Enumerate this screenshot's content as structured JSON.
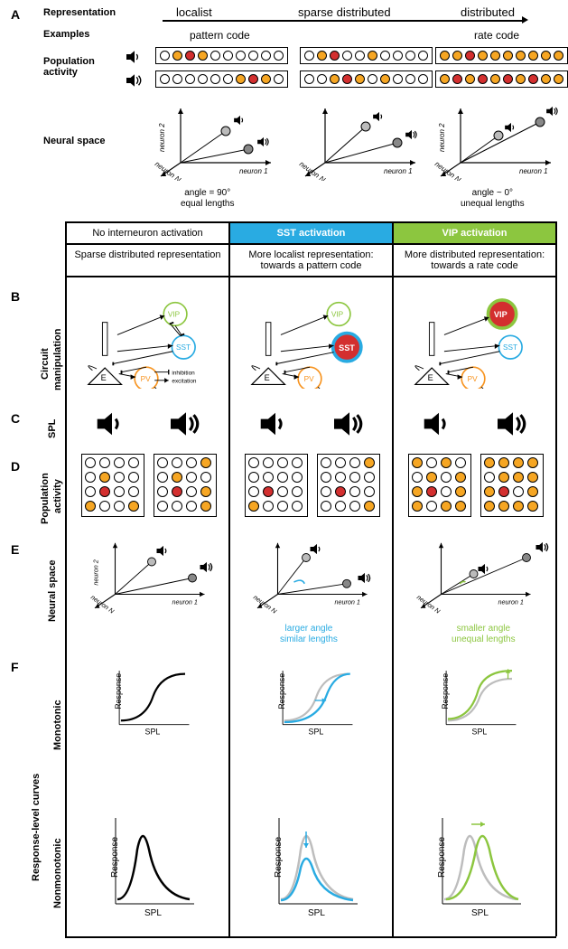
{
  "colors": {
    "white": "#ffffff",
    "black": "#000000",
    "orange": "#f6a623",
    "red": "#d32f2f",
    "sst_blue": "#29abe2",
    "vip_green": "#8cc63f",
    "pv_orange": "#f7931e",
    "gray_curve": "#bdbdbd"
  },
  "panelA": {
    "letter": "A",
    "rows": {
      "representation": "Representation",
      "examples": "Examples",
      "population": "Population\nactivity",
      "neural_space": "Neural space"
    },
    "headers": [
      "localist",
      "sparse distributed",
      "distributed"
    ],
    "example_labels": [
      "pattern code",
      "rate code"
    ],
    "dot_patterns": {
      "localist_low": [
        "w",
        "o",
        "r",
        "o",
        "w",
        "w",
        "w",
        "w",
        "w",
        "w"
      ],
      "localist_high": [
        "w",
        "w",
        "w",
        "w",
        "w",
        "w",
        "o",
        "r",
        "o",
        "w"
      ],
      "sparse_low": [
        "w",
        "o",
        "r",
        "w",
        "w",
        "o",
        "w",
        "w",
        "w",
        "w"
      ],
      "sparse_high": [
        "w",
        "w",
        "o",
        "r",
        "o",
        "w",
        "o",
        "w",
        "w",
        "w"
      ],
      "dist_low": [
        "o",
        "o",
        "r",
        "o",
        "o",
        "o",
        "o",
        "o",
        "o",
        "o"
      ],
      "dist_high": [
        "o",
        "r",
        "o",
        "r",
        "o",
        "r",
        "o",
        "r",
        "o",
        "o"
      ]
    },
    "neural_space_captions": {
      "left": "angle = 90°\nequal lengths",
      "right": "angle ~ 0°\nunequal lengths"
    },
    "axis_labels": [
      "neuron 1",
      "neuron 2",
      "neuron N"
    ]
  },
  "table": {
    "headers": [
      "No interneuron activation",
      "SST activation",
      "VIP activation"
    ],
    "subheaders": [
      "Sparse distributed representation",
      "More localist representation: towards a pattern code",
      "More distributed representation: towards a rate code"
    ]
  },
  "rows": {
    "B": {
      "letter": "B",
      "label": "Circuit\nmanipulation"
    },
    "C": {
      "letter": "C",
      "label": "SPL"
    },
    "D": {
      "letter": "D",
      "label": "Population\nactivity"
    },
    "E": {
      "letter": "E",
      "label": "Neural space"
    },
    "F": {
      "letter": "F",
      "label": "Response-level curves",
      "sub1": "Monotonic",
      "sub2": "Nonmonotonic"
    }
  },
  "circuit": {
    "nodes": {
      "E": "E",
      "VIP": "VIP",
      "SST": "SST",
      "PV": "PV"
    },
    "legend": {
      "inhibition": "inhibition",
      "excitation": "excitation"
    }
  },
  "panelD_grids": {
    "none_low": [
      "w",
      "w",
      "w",
      "w",
      "w",
      "o",
      "w",
      "w",
      "w",
      "r",
      "w",
      "w",
      "o",
      "w",
      "w",
      "o"
    ],
    "none_high": [
      "w",
      "w",
      "w",
      "o",
      "w",
      "o",
      "w",
      "w",
      "w",
      "r",
      "w",
      "o",
      "w",
      "w",
      "w",
      "o"
    ],
    "sst_low": [
      "w",
      "w",
      "w",
      "w",
      "w",
      "w",
      "w",
      "w",
      "w",
      "r",
      "w",
      "w",
      "o",
      "w",
      "w",
      "w"
    ],
    "sst_high": [
      "w",
      "w",
      "w",
      "o",
      "w",
      "w",
      "w",
      "w",
      "w",
      "r",
      "w",
      "w",
      "w",
      "w",
      "w",
      "o"
    ],
    "vip_low": [
      "o",
      "w",
      "o",
      "w",
      "w",
      "o",
      "w",
      "o",
      "o",
      "r",
      "w",
      "o",
      "o",
      "w",
      "o",
      "o"
    ],
    "vip_high": [
      "o",
      "o",
      "o",
      "o",
      "w",
      "o",
      "o",
      "o",
      "o",
      "r",
      "w",
      "o",
      "o",
      "o",
      "o",
      "o"
    ]
  },
  "panelE": {
    "captions": {
      "sst": "larger angle\nsimilar lengths",
      "vip": "smaller angle\nunequal lengths"
    }
  },
  "curves": {
    "xlabel": "SPL",
    "ylabel": "Response"
  }
}
